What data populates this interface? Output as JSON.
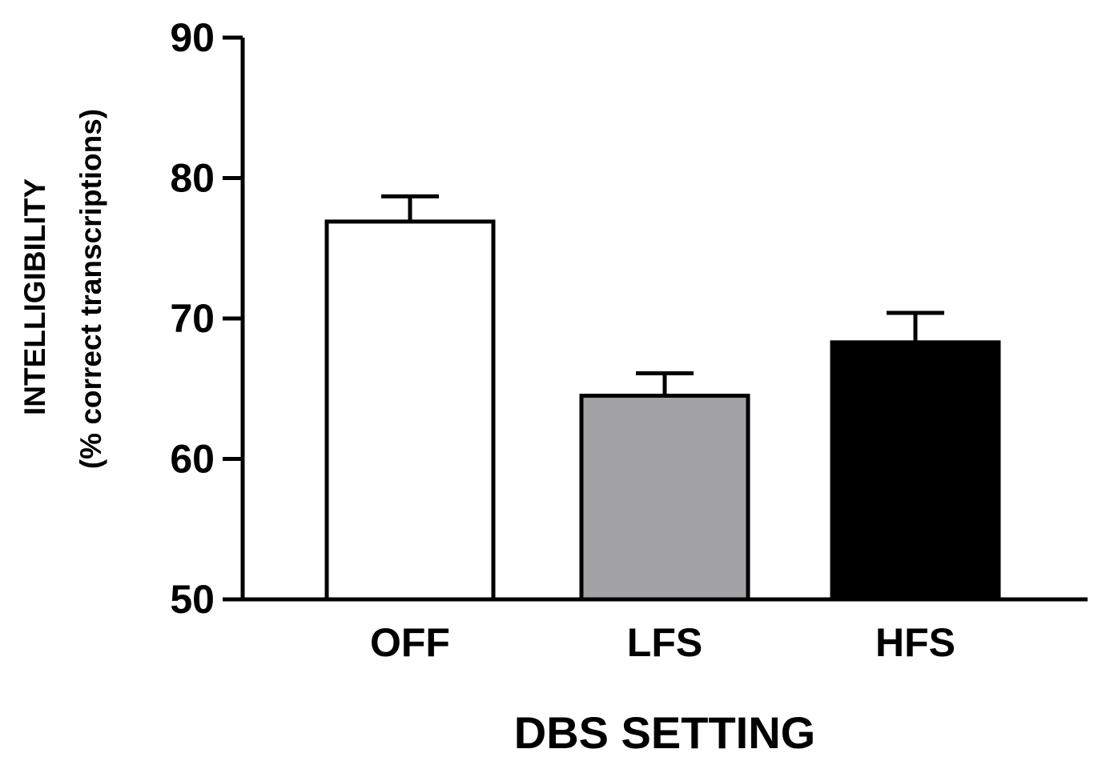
{
  "chart_data": {
    "type": "bar",
    "categories": [
      "OFF",
      "LFS",
      "HFS"
    ],
    "values": [
      76.9,
      64.5,
      68.3
    ],
    "errors": [
      1.8,
      1.6,
      2.1
    ],
    "bar_colors": [
      "#ffffff",
      "#a3a3a6",
      "#000000"
    ],
    "bar_stroke": "#000000",
    "xlabel": "DBS SETTING",
    "ylabel": "INTELLIGIBILITY",
    "ylabel_sub": "(% correct transcriptions)",
    "ylim": [
      50,
      90
    ],
    "yticks": [
      50,
      60,
      70,
      80,
      90
    ],
    "grid": false,
    "error_bars": "upper"
  }
}
